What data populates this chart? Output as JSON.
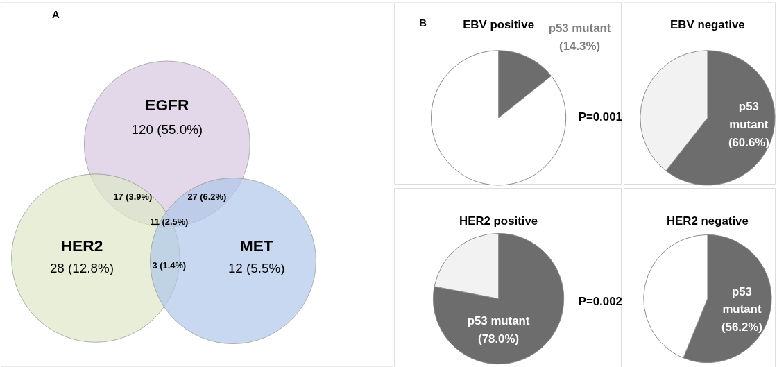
{
  "chart_data": [
    {
      "type": "other",
      "categories": [
        "EGFR",
        "HER2",
        "MET"
      ],
      "values": [
        120,
        28,
        12
      ],
      "value_labels": [
        "120 (55.0%)",
        "28 (12.8%)",
        "12 (5.5%)"
      ],
      "colors": [
        "#d6c8e0",
        "#dfe8c8",
        "#b0c8ea"
      ],
      "annotations": [
        "A",
        "17 (3.9%)",
        "27 (6.2%)",
        "11 (2.5%)",
        "3 (1.4%)"
      ],
      "legend": false
    },
    {
      "type": "pie",
      "title": "EBV positive",
      "categories": [
        "p53 mutant",
        null
      ],
      "values": [
        14.3,
        85.7
      ],
      "value_labels": [
        "(14.3%)",
        null
      ],
      "colors": [
        "#6d6d6d",
        "#ffffff"
      ],
      "annotations": [
        "B",
        "P=0.001"
      ],
      "legend": false
    },
    {
      "type": "pie",
      "title": "EBV negative",
      "categories": [
        "p53 mutant",
        null
      ],
      "values": [
        60.6,
        39.4
      ],
      "value_labels": [
        "(60.6%)",
        null
      ],
      "colors": [
        "#6d6d6d",
        "#f2f2f2"
      ],
      "legend": false
    },
    {
      "type": "pie",
      "title": "HER2 positive",
      "categories": [
        "p53 mutant",
        null
      ],
      "values": [
        78.0,
        22.0
      ],
      "value_labels": [
        "(78.0%)",
        null
      ],
      "colors": [
        "#6d6d6d",
        "#f2f2f2"
      ],
      "annotations": [
        "P=0.002"
      ],
      "legend": false
    },
    {
      "type": "pie",
      "title": "HER2 negative",
      "categories": [
        "p53 mutant",
        null
      ],
      "values": [
        56.2,
        43.8
      ],
      "value_labels": [
        "(56.2%)",
        null
      ],
      "colors": [
        "#6d6d6d",
        "#ffffff"
      ],
      "legend": false
    }
  ]
}
